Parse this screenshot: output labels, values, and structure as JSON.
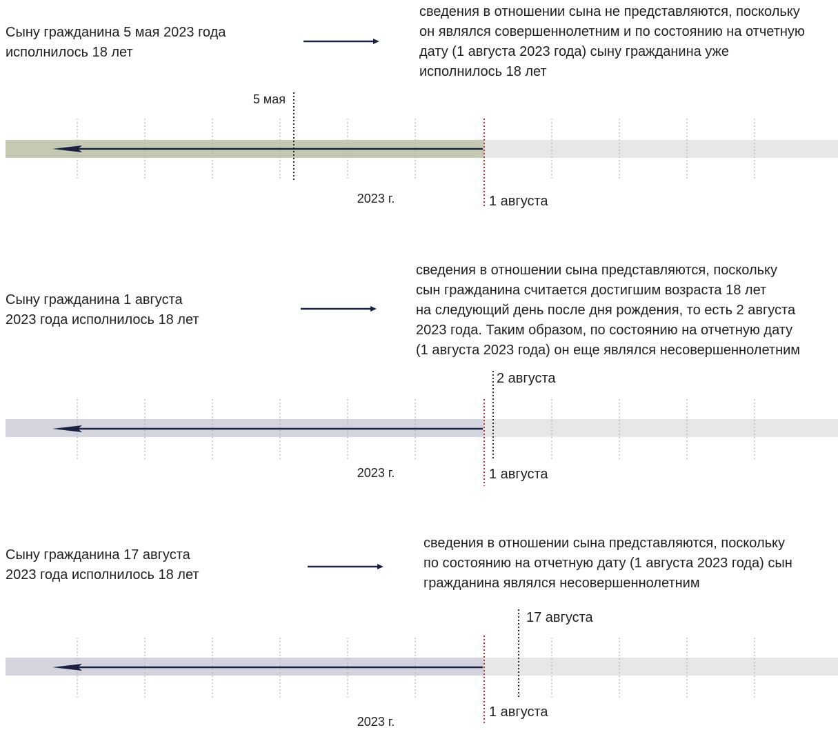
{
  "panels": [
    {
      "premise_lines": [
        "Сыну гражданина 5 мая 2023 года",
        "исполнилось 18 лет"
      ],
      "conclusion_lines": [
        "сведения в отношении сына не представляются, поскольку",
        "он являлся совершеннолетним и по состоянию на отчетную",
        "дату (1 августа 2023 года) сыну гражданина уже",
        "исполнилось 18 лет"
      ],
      "year_label": "2023 г.",
      "report_date_label": "1 августа",
      "event_label": "5 мая"
    },
    {
      "premise_lines": [
        "Сыну гражданина 1 августа",
        "2023 года исполнилось 18 лет"
      ],
      "conclusion_lines": [
        "сведения в отношении сына представляются, поскольку",
        "сын гражданина считается достигшим возраста 18 лет",
        "на следующий день после дня рождения, то есть 2 августа",
        "2023 года. Таким образом, по состоянию на отчетную дату",
        "(1 августа 2023 года) он еще являлся несовершеннолетним"
      ],
      "year_label": "2023 г.",
      "report_date_label": "1 августа",
      "event_label": "2 августа"
    },
    {
      "premise_lines": [
        "Сыну гражданина 17 августа",
        "2023 года исполнилось 18 лет"
      ],
      "conclusion_lines": [
        "сведения в отношении сына представляются, поскольку",
        "по состоянию на отчетную дату (1 августа 2023 года) сын",
        "гражданина являлся несовершеннолетним"
      ],
      "year_label": "2023 г.",
      "report_date_label": "1 августа",
      "event_label": "17 августа"
    }
  ],
  "colors": {
    "text": "#1f1f1f",
    "arrow": "#1b2241",
    "band_past_adult": "#c3c9b2",
    "band_past_minor": "#d3d4dd",
    "band_future": "#e6e7e9",
    "tick": "#b3b3b3",
    "report_date_marker": "#d0282e",
    "event_marker": "#2b2b2b"
  }
}
